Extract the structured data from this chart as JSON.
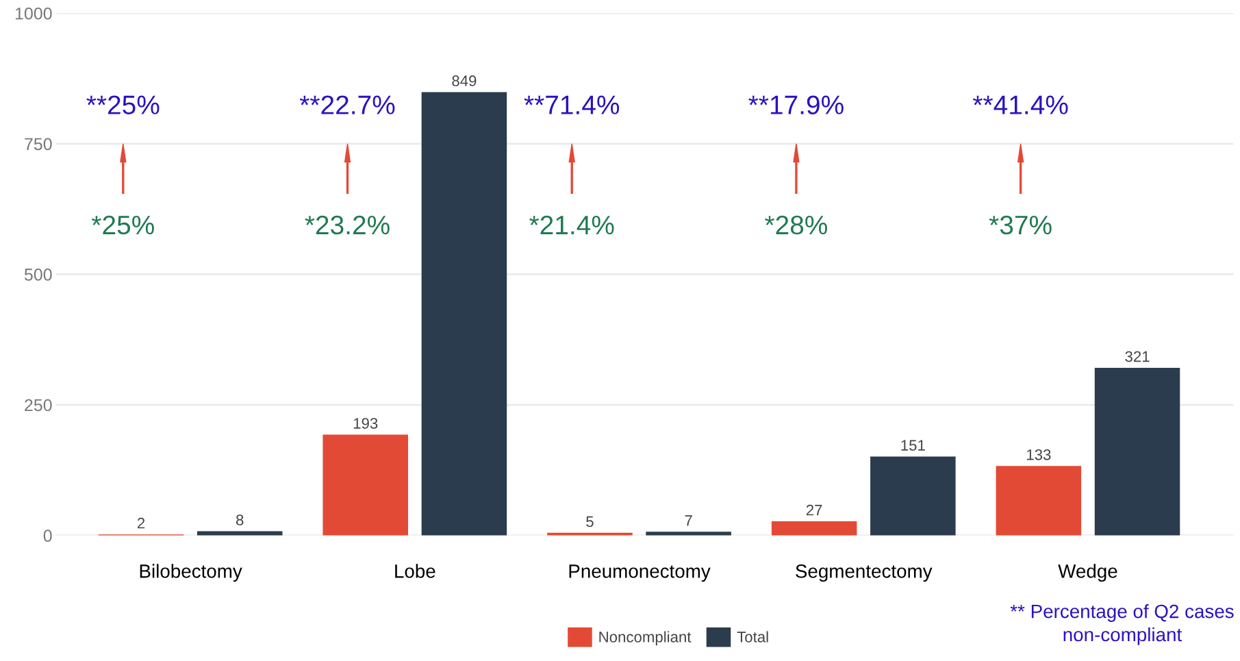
{
  "chart_data": {
    "type": "bar",
    "categories": [
      "Bilobectomy",
      "Lobe",
      "Pneumonectomy",
      "Segmentectomy",
      "Wedge"
    ],
    "series": [
      {
        "name": "Noncompliant",
        "color": "#e34a36",
        "values": [
          2,
          193,
          5,
          27,
          133
        ]
      },
      {
        "name": "Total",
        "color": "#2b3c4e",
        "values": [
          8,
          849,
          7,
          151,
          321
        ]
      }
    ],
    "ylim": [
      0,
      1000
    ],
    "yticks": [
      0,
      250,
      500,
      750,
      1000
    ],
    "grid": "y",
    "legend": "bottom",
    "data_labels": true,
    "annotations": [
      "**25%",
      "*25%",
      "**22.7%",
      "*23.2%",
      "**71.4%",
      "*21.4%",
      "**17.9%",
      "*28%",
      "**41.4%",
      "*37%",
      "** Percentage of Q2 cases\nnon-compliant"
    ]
  }
}
